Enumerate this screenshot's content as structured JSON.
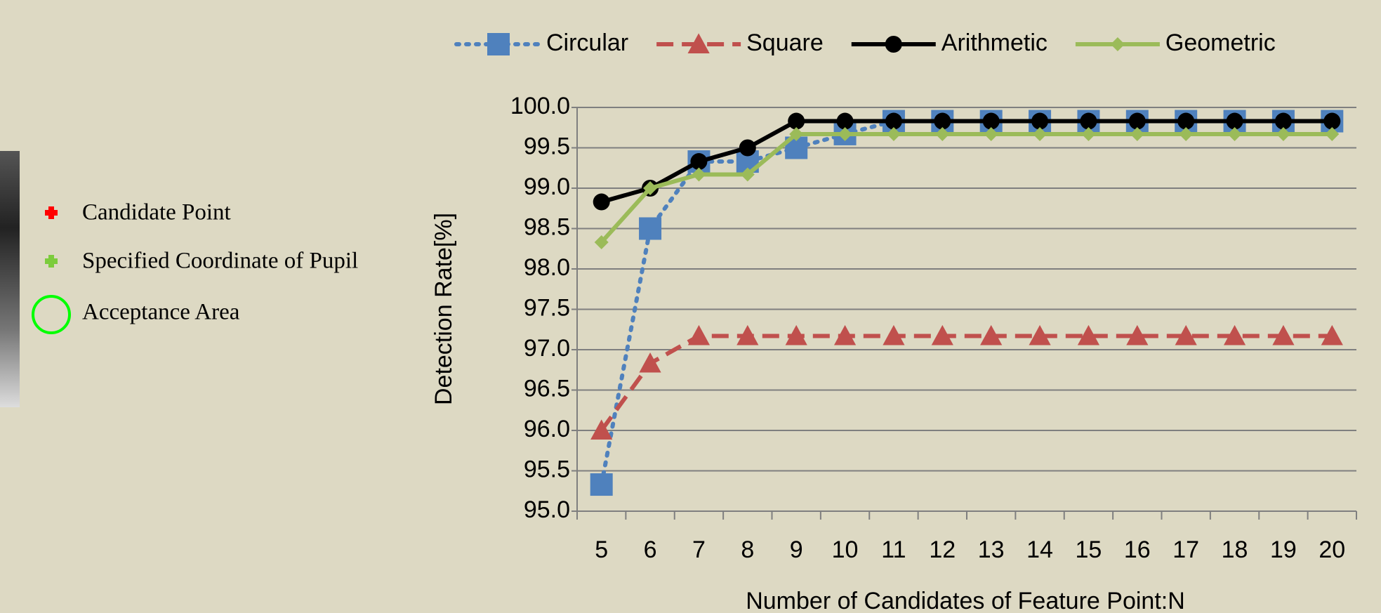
{
  "figure_legend": [
    "Candidate Point",
    "Specified Coordinate of Pupil",
    "Acceptance Area"
  ],
  "chart_data": {
    "type": "line",
    "x_label": "Number of Candidates of Feature Point:N",
    "y_label": "Detection Rate[%]",
    "categories": [
      "5",
      "6",
      "7",
      "8",
      "9",
      "10",
      "11",
      "12",
      "13",
      "14",
      "15",
      "16",
      "17",
      "18",
      "19",
      "20"
    ],
    "series": [
      {
        "name": "Circular",
        "color": "#4f81bd",
        "line_style": "dotted",
        "marker": "square",
        "values": [
          95.33,
          98.5,
          99.33,
          99.33,
          99.5,
          99.67,
          99.83,
          99.83,
          99.83,
          99.83,
          99.83,
          99.83,
          99.83,
          99.83,
          99.83,
          99.83
        ]
      },
      {
        "name": "Square",
        "color": "#c0504d",
        "line_style": "dashed",
        "marker": "triangle",
        "values": [
          96.0,
          96.83,
          97.17,
          97.17,
          97.17,
          97.17,
          97.17,
          97.17,
          97.17,
          97.17,
          97.17,
          97.17,
          97.17,
          97.17,
          97.17,
          97.17
        ]
      },
      {
        "name": "Arithmetic",
        "color": "#000000",
        "line_style": "solid",
        "marker": "circle",
        "values": [
          98.83,
          99.0,
          99.33,
          99.5,
          99.83,
          99.83,
          99.83,
          99.83,
          99.83,
          99.83,
          99.83,
          99.83,
          99.83,
          99.83,
          99.83,
          99.83
        ]
      },
      {
        "name": "Geometric",
        "color": "#9bbb59",
        "line_style": "solid",
        "marker": "diamond",
        "values": [
          98.33,
          99.0,
          99.17,
          99.17,
          99.67,
          99.67,
          99.67,
          99.67,
          99.67,
          99.67,
          99.67,
          99.67,
          99.67,
          99.67,
          99.67,
          99.67
        ]
      }
    ],
    "ylim": [
      95,
      100
    ],
    "yticks": [
      {
        "value": 95,
        "label": "95.0"
      },
      {
        "value": 95.5,
        "label": "95.5"
      },
      {
        "value": 96,
        "label": "96.0"
      },
      {
        "value": 96.5,
        "label": "96.5"
      },
      {
        "value": 97,
        "label": "97.0"
      },
      {
        "value": 97.5,
        "label": "97.5"
      },
      {
        "value": 98,
        "label": "98.0"
      },
      {
        "value": 98.5,
        "label": "98.5"
      },
      {
        "value": 99,
        "label": "99.0"
      },
      {
        "value": 99.5,
        "label": "99.5"
      },
      {
        "value": 100,
        "label": "100.0"
      }
    ],
    "grid": true,
    "legend": "top"
  }
}
